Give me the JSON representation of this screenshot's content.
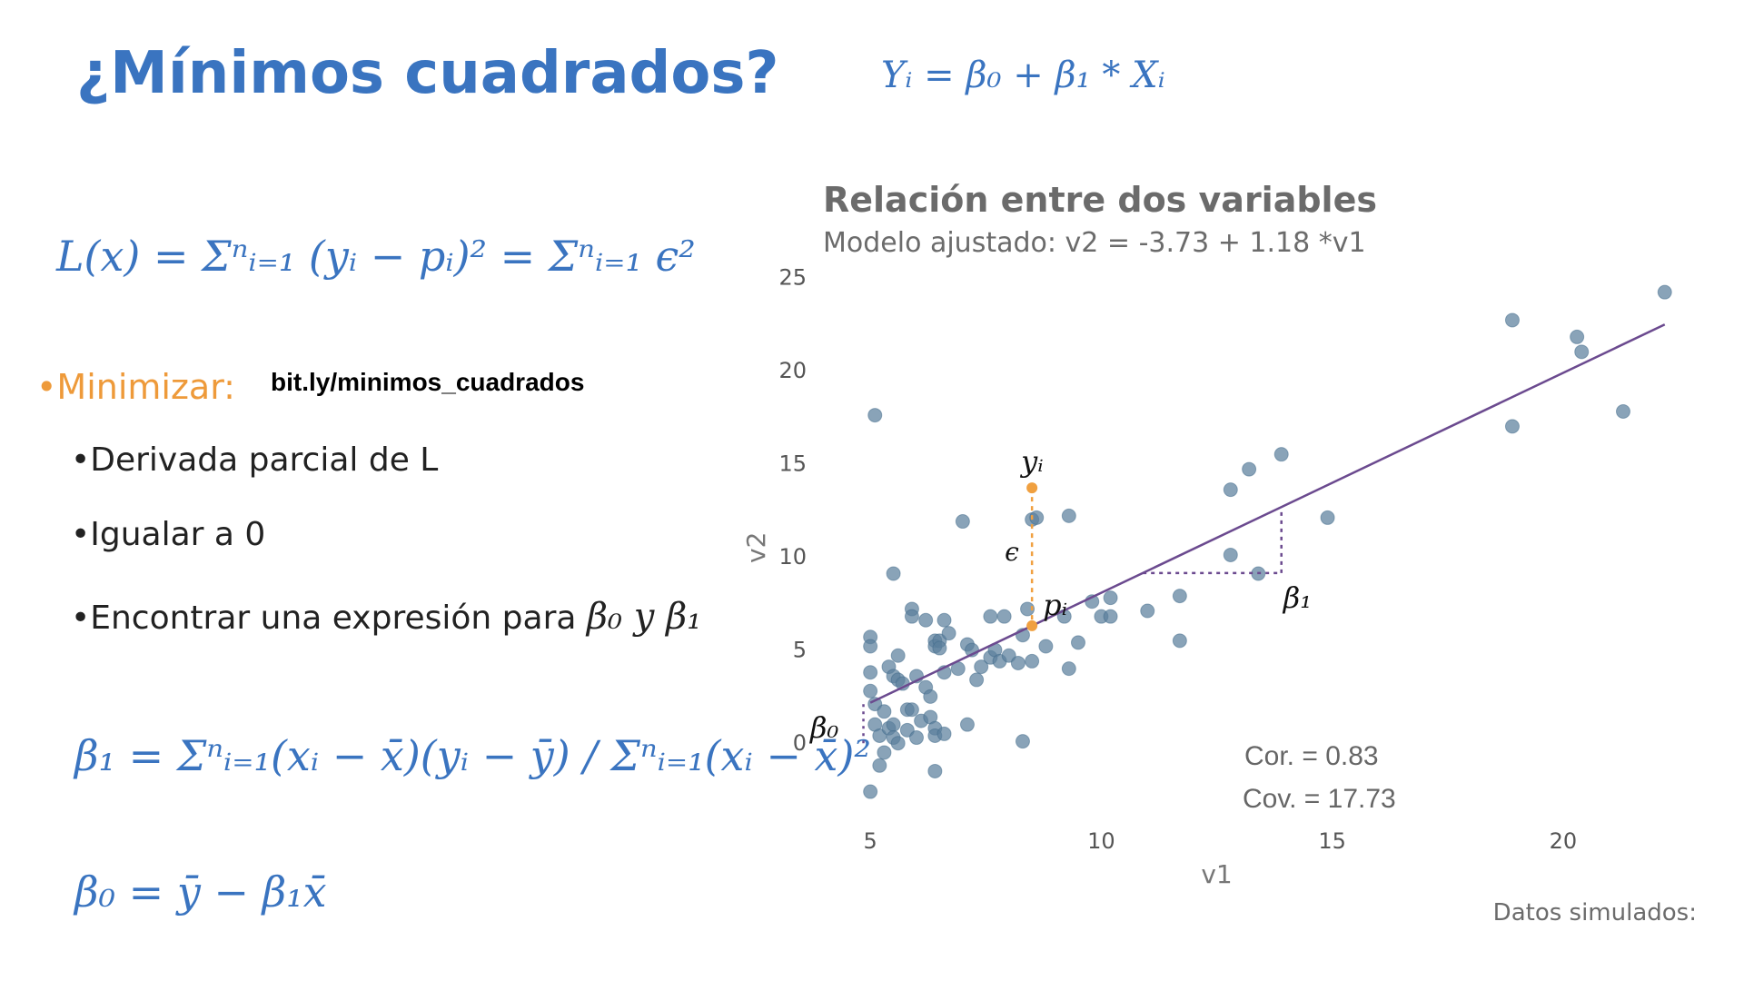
{
  "slide": {
    "title": "¿Mínimos cuadrados?",
    "model_equation": "Yᵢ = β₀ + β₁ * Xᵢ",
    "loss_equation": "L(x) = Σⁿᵢ₌₁ (yᵢ − pᵢ)² = Σⁿᵢ₌₁ ϵ²",
    "minimizar": "•Minimizar:",
    "link": "bit.ly/minimos_cuadrados",
    "bullets": [
      "•Derivada parcial de L",
      "•Igualar a 0",
      "•Encontrar una expresión para"
    ],
    "bullet3_math": "β₀ y β₁",
    "beta1_equation": "β₁ = Σⁿᵢ₌₁(xᵢ − x̄)(yᵢ − ȳ) / Σⁿᵢ₌₁(xᵢ − x̄)²",
    "beta0_equation": "β₀ = ȳ − β₁x̄",
    "footer": "Datos simulados:"
  },
  "chart_data": {
    "type": "scatter",
    "title": "Relación entre dos variables",
    "subtitle": "Modelo ajustado: v2 =  -3.73  +  1.18 *v1",
    "xlabel": "v1",
    "ylabel": "v2",
    "xlim": [
      4.8,
      22.5
    ],
    "ylim": [
      -3.5,
      25.5
    ],
    "x_ticks": [
      5,
      10,
      15,
      20
    ],
    "y_ticks": [
      0,
      5,
      10,
      15,
      20,
      25
    ],
    "grid": false,
    "point_color": "#5b7f9c",
    "line_color": "#6b4a8f",
    "highlight_color": "#f0a040",
    "fit": {
      "intercept": -3.73,
      "slope": 1.18,
      "x_start": 5,
      "x_end": 22.2
    },
    "annotations": {
      "cor": "Cor. =  0.83",
      "cov": "Cov. =  17.73",
      "yi": "yᵢ",
      "pi": "pᵢ",
      "epsilon": "ϵ",
      "beta0": "β₀",
      "beta1": "β₁"
    },
    "highlight": {
      "x": 8.5,
      "y_obs": 13.7,
      "y_pred": 6.3
    },
    "beta1_triangle": {
      "x_from": 10.9,
      "x_to": 13.9
    },
    "points": [
      [
        5.1,
        17.6
      ],
      [
        5.5,
        9.1
      ],
      [
        5.0,
        5.7
      ],
      [
        5.0,
        5.2
      ],
      [
        5.0,
        3.8
      ],
      [
        5.0,
        2.8
      ],
      [
        5.1,
        2.1
      ],
      [
        5.1,
        1.0
      ],
      [
        5.2,
        0.4
      ],
      [
        5.3,
        1.7
      ],
      [
        5.3,
        -0.5
      ],
      [
        5.2,
        -1.2
      ],
      [
        5.0,
        -2.6
      ],
      [
        5.4,
        0.8
      ],
      [
        5.4,
        4.1
      ],
      [
        5.5,
        3.6
      ],
      [
        5.6,
        3.4
      ],
      [
        5.6,
        4.7
      ],
      [
        5.7,
        3.2
      ],
      [
        5.5,
        1.0
      ],
      [
        5.5,
        0.3
      ],
      [
        5.6,
        0.0
      ],
      [
        5.8,
        1.8
      ],
      [
        5.8,
        0.7
      ],
      [
        5.9,
        1.8
      ],
      [
        5.9,
        7.2
      ],
      [
        5.9,
        6.8
      ],
      [
        6.0,
        3.6
      ],
      [
        6.1,
        1.2
      ],
      [
        6.0,
        0.3
      ],
      [
        6.2,
        3.0
      ],
      [
        6.2,
        6.6
      ],
      [
        6.3,
        2.5
      ],
      [
        6.4,
        5.5
      ],
      [
        6.4,
        5.2
      ],
      [
        6.5,
        5.5
      ],
      [
        6.5,
        5.1
      ],
      [
        6.3,
        1.4
      ],
      [
        6.4,
        0.8
      ],
      [
        6.4,
        0.4
      ],
      [
        6.4,
        -1.5
      ],
      [
        6.6,
        3.8
      ],
      [
        6.6,
        6.6
      ],
      [
        6.7,
        5.9
      ],
      [
        6.6,
        0.5
      ],
      [
        7.0,
        11.9
      ],
      [
        7.1,
        5.3
      ],
      [
        7.2,
        5.0
      ],
      [
        7.1,
        1.0
      ],
      [
        6.9,
        4.0
      ],
      [
        7.3,
        3.4
      ],
      [
        7.4,
        4.1
      ],
      [
        7.6,
        4.6
      ],
      [
        7.6,
        6.8
      ],
      [
        7.7,
        5.0
      ],
      [
        7.8,
        4.4
      ],
      [
        7.9,
        6.8
      ],
      [
        8.0,
        4.7
      ],
      [
        8.2,
        4.3
      ],
      [
        8.3,
        0.1
      ],
      [
        8.3,
        5.8
      ],
      [
        8.4,
        7.2
      ],
      [
        8.5,
        12.0
      ],
      [
        8.6,
        12.1
      ],
      [
        8.5,
        4.4
      ],
      [
        8.8,
        5.2
      ],
      [
        9.2,
        6.8
      ],
      [
        9.3,
        12.2
      ],
      [
        9.3,
        4.0
      ],
      [
        9.5,
        5.4
      ],
      [
        9.8,
        7.6
      ],
      [
        10.0,
        6.8
      ],
      [
        10.2,
        7.8
      ],
      [
        10.2,
        6.8
      ],
      [
        11.0,
        7.1
      ],
      [
        11.7,
        7.9
      ],
      [
        11.7,
        5.5
      ],
      [
        12.8,
        13.6
      ],
      [
        12.8,
        10.1
      ],
      [
        13.2,
        14.7
      ],
      [
        13.4,
        9.1
      ],
      [
        13.9,
        15.5
      ],
      [
        14.9,
        12.1
      ],
      [
        18.9,
        22.7
      ],
      [
        18.9,
        17.0
      ],
      [
        20.3,
        21.8
      ],
      [
        20.4,
        21.0
      ],
      [
        21.3,
        17.8
      ],
      [
        22.2,
        24.2
      ]
    ]
  }
}
